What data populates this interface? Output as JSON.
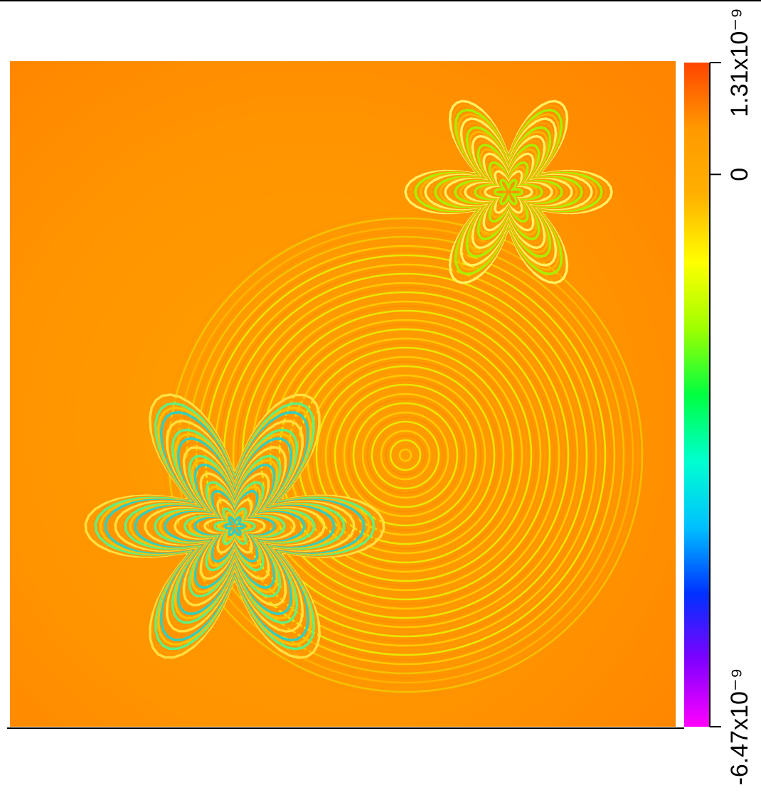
{
  "chart_data": {
    "type": "heatmap",
    "colormap": [
      "#ff4400",
      "#ff9a00",
      "#ffb000",
      "#ffff00",
      "#a0ff00",
      "#00ff40",
      "#00ffd0",
      "#00c0ff",
      "#0030ff",
      "#8000ff",
      "#ff00ff"
    ],
    "zlim": [
      -6.47e-09,
      1.31e-09
    ],
    "zticks": [
      {
        "value": 1.31e-09,
        "label": "1.31x10⁻⁹"
      },
      0,
      {
        "value": -6.47e-09,
        "label": "-6.47x10⁻⁹"
      }
    ]
  }
}
